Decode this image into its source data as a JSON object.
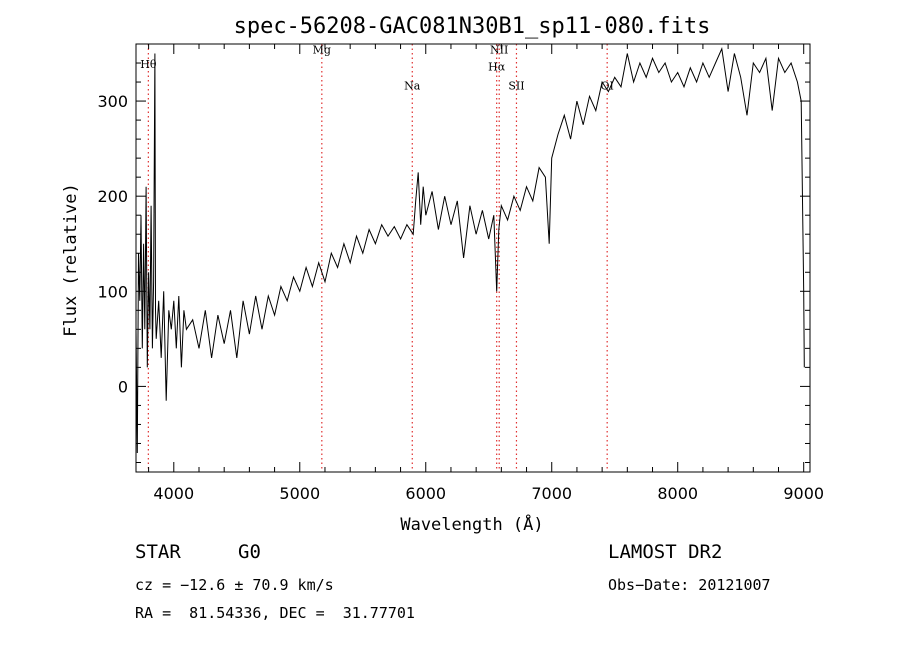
{
  "chart_data": {
    "type": "line",
    "title": "spec-56208-GAC081N30B1_sp11-080.fits",
    "xlabel": "Wavelength (Å)",
    "ylabel": "Flux (relative)",
    "xlim": [
      3700,
      9050
    ],
    "ylim": [
      -90,
      360
    ],
    "x_ticks": [
      4000,
      5000,
      6000,
      7000,
      8000,
      9000
    ],
    "y_ticks": [
      0,
      100,
      200,
      300
    ],
    "grid": false,
    "series": [
      {
        "color": "#000000",
        "points": [
          [
            3700,
            60
          ],
          [
            3710,
            -70
          ],
          [
            3720,
            140
          ],
          [
            3730,
            90
          ],
          [
            3740,
            180
          ],
          [
            3750,
            40
          ],
          [
            3760,
            150
          ],
          [
            3770,
            60
          ],
          [
            3780,
            210
          ],
          [
            3790,
            20
          ],
          [
            3800,
            120
          ],
          [
            3810,
            60
          ],
          [
            3820,
            190
          ],
          [
            3830,
            40
          ],
          [
            3840,
            110
          ],
          [
            3850,
            350
          ],
          [
            3855,
            80
          ],
          [
            3860,
            50
          ],
          [
            3880,
            90
          ],
          [
            3900,
            30
          ],
          [
            3920,
            100
          ],
          [
            3940,
            -15
          ],
          [
            3960,
            80
          ],
          [
            3980,
            60
          ],
          [
            4000,
            90
          ],
          [
            4020,
            40
          ],
          [
            4040,
            95
          ],
          [
            4060,
            20
          ],
          [
            4080,
            80
          ],
          [
            4100,
            60
          ],
          [
            4150,
            70
          ],
          [
            4200,
            40
          ],
          [
            4250,
            80
          ],
          [
            4300,
            30
          ],
          [
            4350,
            75
          ],
          [
            4400,
            45
          ],
          [
            4450,
            80
          ],
          [
            4500,
            30
          ],
          [
            4550,
            90
          ],
          [
            4600,
            55
          ],
          [
            4650,
            95
          ],
          [
            4700,
            60
          ],
          [
            4750,
            95
          ],
          [
            4800,
            75
          ],
          [
            4850,
            105
          ],
          [
            4900,
            90
          ],
          [
            4950,
            115
          ],
          [
            5000,
            100
          ],
          [
            5050,
            125
          ],
          [
            5100,
            105
          ],
          [
            5150,
            130
          ],
          [
            5200,
            110
          ],
          [
            5250,
            140
          ],
          [
            5300,
            125
          ],
          [
            5350,
            150
          ],
          [
            5400,
            130
          ],
          [
            5450,
            158
          ],
          [
            5500,
            140
          ],
          [
            5550,
            165
          ],
          [
            5600,
            150
          ],
          [
            5650,
            170
          ],
          [
            5700,
            158
          ],
          [
            5750,
            168
          ],
          [
            5800,
            155
          ],
          [
            5850,
            170
          ],
          [
            5900,
            160
          ],
          [
            5920,
            195
          ],
          [
            5940,
            225
          ],
          [
            5960,
            170
          ],
          [
            5980,
            210
          ],
          [
            6000,
            180
          ],
          [
            6050,
            205
          ],
          [
            6100,
            165
          ],
          [
            6150,
            200
          ],
          [
            6200,
            170
          ],
          [
            6250,
            195
          ],
          [
            6300,
            135
          ],
          [
            6350,
            190
          ],
          [
            6400,
            160
          ],
          [
            6450,
            185
          ],
          [
            6500,
            155
          ],
          [
            6540,
            180
          ],
          [
            6563,
            100
          ],
          [
            6580,
            165
          ],
          [
            6600,
            190
          ],
          [
            6650,
            175
          ],
          [
            6700,
            200
          ],
          [
            6750,
            185
          ],
          [
            6800,
            210
          ],
          [
            6850,
            195
          ],
          [
            6900,
            230
          ],
          [
            6950,
            220
          ],
          [
            6980,
            150
          ],
          [
            7000,
            240
          ],
          [
            7050,
            265
          ],
          [
            7100,
            285
          ],
          [
            7150,
            260
          ],
          [
            7200,
            300
          ],
          [
            7250,
            275
          ],
          [
            7300,
            305
          ],
          [
            7350,
            290
          ],
          [
            7400,
            320
          ],
          [
            7450,
            310
          ],
          [
            7500,
            325
          ],
          [
            7550,
            315
          ],
          [
            7600,
            350
          ],
          [
            7650,
            320
          ],
          [
            7700,
            340
          ],
          [
            7750,
            325
          ],
          [
            7800,
            345
          ],
          [
            7850,
            330
          ],
          [
            7900,
            340
          ],
          [
            7950,
            320
          ],
          [
            8000,
            330
          ],
          [
            8050,
            315
          ],
          [
            8100,
            335
          ],
          [
            8150,
            320
          ],
          [
            8200,
            340
          ],
          [
            8250,
            325
          ],
          [
            8300,
            340
          ],
          [
            8350,
            355
          ],
          [
            8400,
            310
          ],
          [
            8450,
            350
          ],
          [
            8500,
            325
          ],
          [
            8550,
            285
          ],
          [
            8600,
            340
          ],
          [
            8650,
            330
          ],
          [
            8700,
            345
          ],
          [
            8750,
            290
          ],
          [
            8800,
            345
          ],
          [
            8850,
            330
          ],
          [
            8900,
            340
          ],
          [
            8950,
            320
          ],
          [
            8980,
            300
          ],
          [
            9000,
            100
          ],
          [
            9005,
            20
          ]
        ]
      }
    ],
    "lines": [
      {
        "label": "Hθ",
        "x": 3798,
        "label_y": 335
      },
      {
        "label": "Mg",
        "x": 5175,
        "label_y": 350
      },
      {
        "label": "Na",
        "x": 5893,
        "label_y": 312
      },
      {
        "label": "NII",
        "x": 6583,
        "label_y": 350
      },
      {
        "label": "Hα",
        "x": 6563,
        "label_y": 332
      },
      {
        "label": "SII",
        "x": 6720,
        "label_y": 312
      },
      {
        "label": "OI",
        "x": 7440,
        "label_y": 312
      }
    ],
    "line_color": "#e03030"
  },
  "info": {
    "class": "STAR",
    "subclass": "G0",
    "survey": "LAMOST DR2",
    "cz": "cz = −12.6 ± 70.9 km/s",
    "obsdate": "Obs−Date: 20121007",
    "radec": "RA =  81.54336, DEC =  31.77701"
  }
}
